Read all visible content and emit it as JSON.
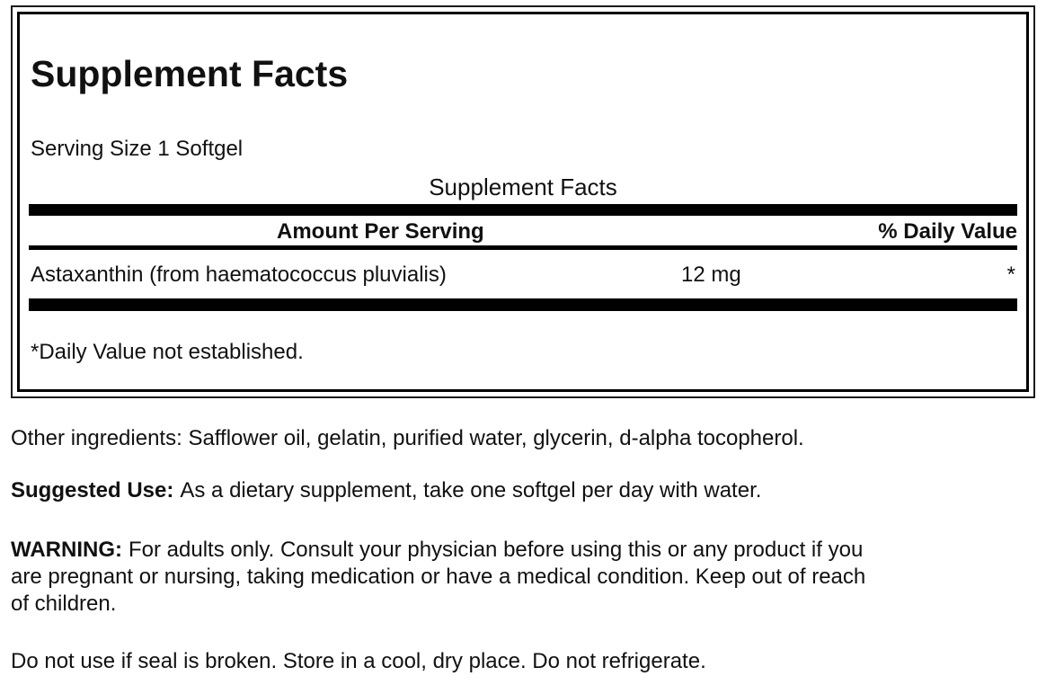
{
  "panel": {
    "title": "Supplement Facts",
    "serving_size": "Serving Size 1 Softgel",
    "table_title": "Supplement Facts",
    "columns": {
      "amount": "Amount Per Serving",
      "daily_value": "% Daily Value"
    },
    "rows": [
      {
        "name": "Astaxanthin (from haematococcus pluvialis)",
        "amount": "12 mg",
        "daily_value": "*"
      }
    ],
    "footnote": "*Daily Value not established."
  },
  "sections": {
    "other_ingredients": "Other ingredients: Safflower oil, gelatin, purified water, glycerin, d-alpha tocopherol.",
    "suggested_use_label": "Suggested Use:",
    "suggested_use_text": "As a dietary supplement, take one softgel per day with water.",
    "warning_label": "WARNING:",
    "warning_text": "For adults only. Consult your physician before using this or any product if you\nare pregnant or nursing, taking medication or have a medical condition. Keep out of reach\nof children.",
    "storage": "Do not use if seal is broken. Store in a cool, dry place. Do not refrigerate."
  },
  "colors": {
    "text": "#111111",
    "divider_bar": "#000000",
    "background": "#ffffff"
  }
}
